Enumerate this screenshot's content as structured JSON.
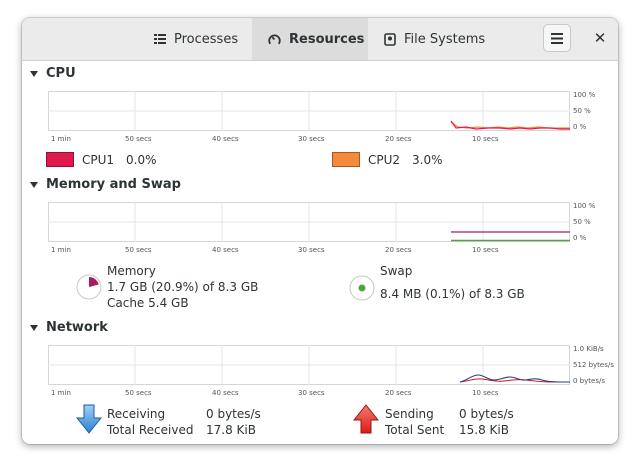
{
  "tabs": [
    {
      "label": "Processes",
      "icon": "list-icon"
    },
    {
      "label": "Resources",
      "icon": "gauge-icon"
    },
    {
      "label": "File Systems",
      "icon": "disk-icon"
    }
  ],
  "header": {
    "menu_icon": "hamburger-menu-icon",
    "close_symbol": "✕"
  },
  "x_labels": [
    "1 min",
    "50 secs",
    "40 secs",
    "30 secs",
    "20 secs",
    "10 secs"
  ],
  "cpu": {
    "title": "CPU",
    "y_labels": [
      "100 %",
      "50 %",
      "0 %"
    ],
    "cpu1": {
      "label": "CPU1",
      "value": "0.0%",
      "color": "#e01b4b"
    },
    "cpu2": {
      "label": "CPU2",
      "value": "3.0%",
      "color": "#f58a3b"
    }
  },
  "memory": {
    "title": "Memory and Swap",
    "y_labels": [
      "100 %",
      "50 %",
      "0 %"
    ],
    "mem_label": "Memory",
    "mem_value": "1.7 GB (20.9%) of 8.3 GB",
    "mem_cache": "Cache 5.4 GB",
    "mem_color": "#a51d5d",
    "swap_label": "Swap",
    "swap_value": "8.4 MB (0.1%) of 8.3 GB",
    "swap_color": "#4fa341",
    "mem_fraction": 0.209,
    "swap_fraction": 0.001
  },
  "network": {
    "title": "Network",
    "y_labels": [
      "1.0 KiB/s",
      "512 bytes/s",
      "0 bytes/s"
    ],
    "receiving_label": "Receiving",
    "receiving_value": "0 bytes/s",
    "total_received_label": "Total Received",
    "total_received_value": "17.8 KiB",
    "sending_label": "Sending",
    "sending_value": "0 bytes/s",
    "total_sent_label": "Total Sent",
    "total_sent_value": "15.8 KiB",
    "recv_color": "#2c3c8a",
    "send_color": "#c01c28"
  }
}
